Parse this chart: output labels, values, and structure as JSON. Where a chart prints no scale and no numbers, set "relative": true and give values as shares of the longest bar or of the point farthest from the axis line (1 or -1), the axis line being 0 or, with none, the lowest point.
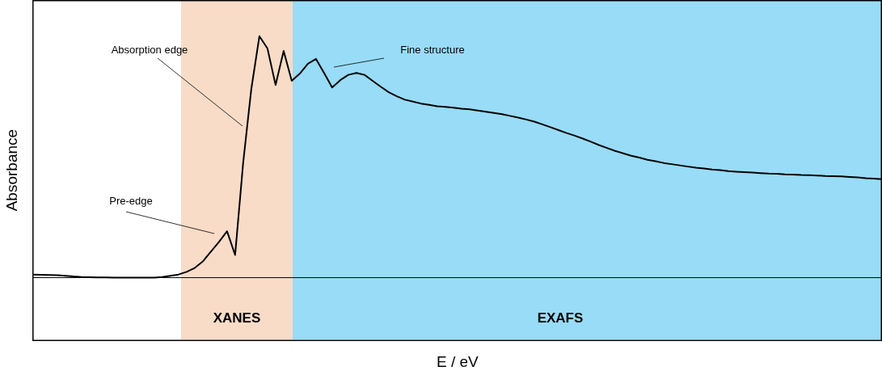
{
  "chart_data": {
    "type": "line",
    "relative": true,
    "xlabel": "E / eV",
    "ylabel": "Absorbance",
    "marker": "none",
    "line_style": "solid",
    "categories": [
      null,
      null,
      null,
      null,
      null,
      null,
      null,
      null,
      null,
      null,
      null,
      null,
      null,
      null,
      null,
      null,
      null,
      null,
      null,
      null,
      null,
      null,
      null,
      null,
      null,
      null,
      null,
      null,
      null,
      null,
      null,
      null,
      null,
      null,
      null,
      null,
      null,
      null,
      null,
      null,
      null,
      null,
      null,
      null,
      null,
      null,
      null,
      null,
      null,
      null,
      null,
      null,
      null,
      null,
      null,
      null,
      null,
      null,
      null,
      null,
      null,
      null,
      null,
      null,
      null,
      null,
      null,
      null,
      null,
      null,
      null,
      null,
      null,
      null,
      null,
      null,
      null,
      null,
      null,
      null,
      null,
      null,
      null,
      null,
      null,
      null,
      null,
      null,
      null,
      null,
      null,
      null,
      null,
      null,
      null,
      null,
      null,
      null,
      null,
      null,
      null,
      null,
      null,
      null,
      null,
      null
    ],
    "series": [
      {
        "color": "#000000",
        "values": [
          0.013,
          0.012,
          0.011,
          0.01,
          0.008,
          0.005,
          0.003,
          0.002,
          0.001,
          0.001,
          0,
          0,
          0,
          0,
          0,
          0,
          0.003,
          0.008,
          0.013,
          0.024,
          0.04,
          0.067,
          0.108,
          0.148,
          0.192,
          0.094,
          0.478,
          0.781,
          1.0,
          0.949,
          0.798,
          0.939,
          0.815,
          0.845,
          0.886,
          0.906,
          0.848,
          0.788,
          0.818,
          0.84,
          0.848,
          0.84,
          0.815,
          0.791,
          0.768,
          0.751,
          0.737,
          0.729,
          0.721,
          0.716,
          0.71,
          0.707,
          0.704,
          0.7,
          0.697,
          0.692,
          0.687,
          0.682,
          0.677,
          0.67,
          0.663,
          0.655,
          0.646,
          0.635,
          0.623,
          0.611,
          0.599,
          0.588,
          0.576,
          0.563,
          0.549,
          0.537,
          0.525,
          0.515,
          0.505,
          0.497,
          0.488,
          0.482,
          0.475,
          0.47,
          0.465,
          0.46,
          0.455,
          0.452,
          0.448,
          0.445,
          0.441,
          0.439,
          0.437,
          0.435,
          0.433,
          0.431,
          0.43,
          0.428,
          0.427,
          0.425,
          0.424,
          0.423,
          0.421,
          0.42,
          0.419,
          0.417,
          0.415,
          0.412,
          0.41,
          0.408
        ]
      }
    ],
    "annotations": [
      "Absorption edge",
      "Pre-edge",
      "Fine structure",
      "XANES",
      "EXAFS"
    ]
  }
}
